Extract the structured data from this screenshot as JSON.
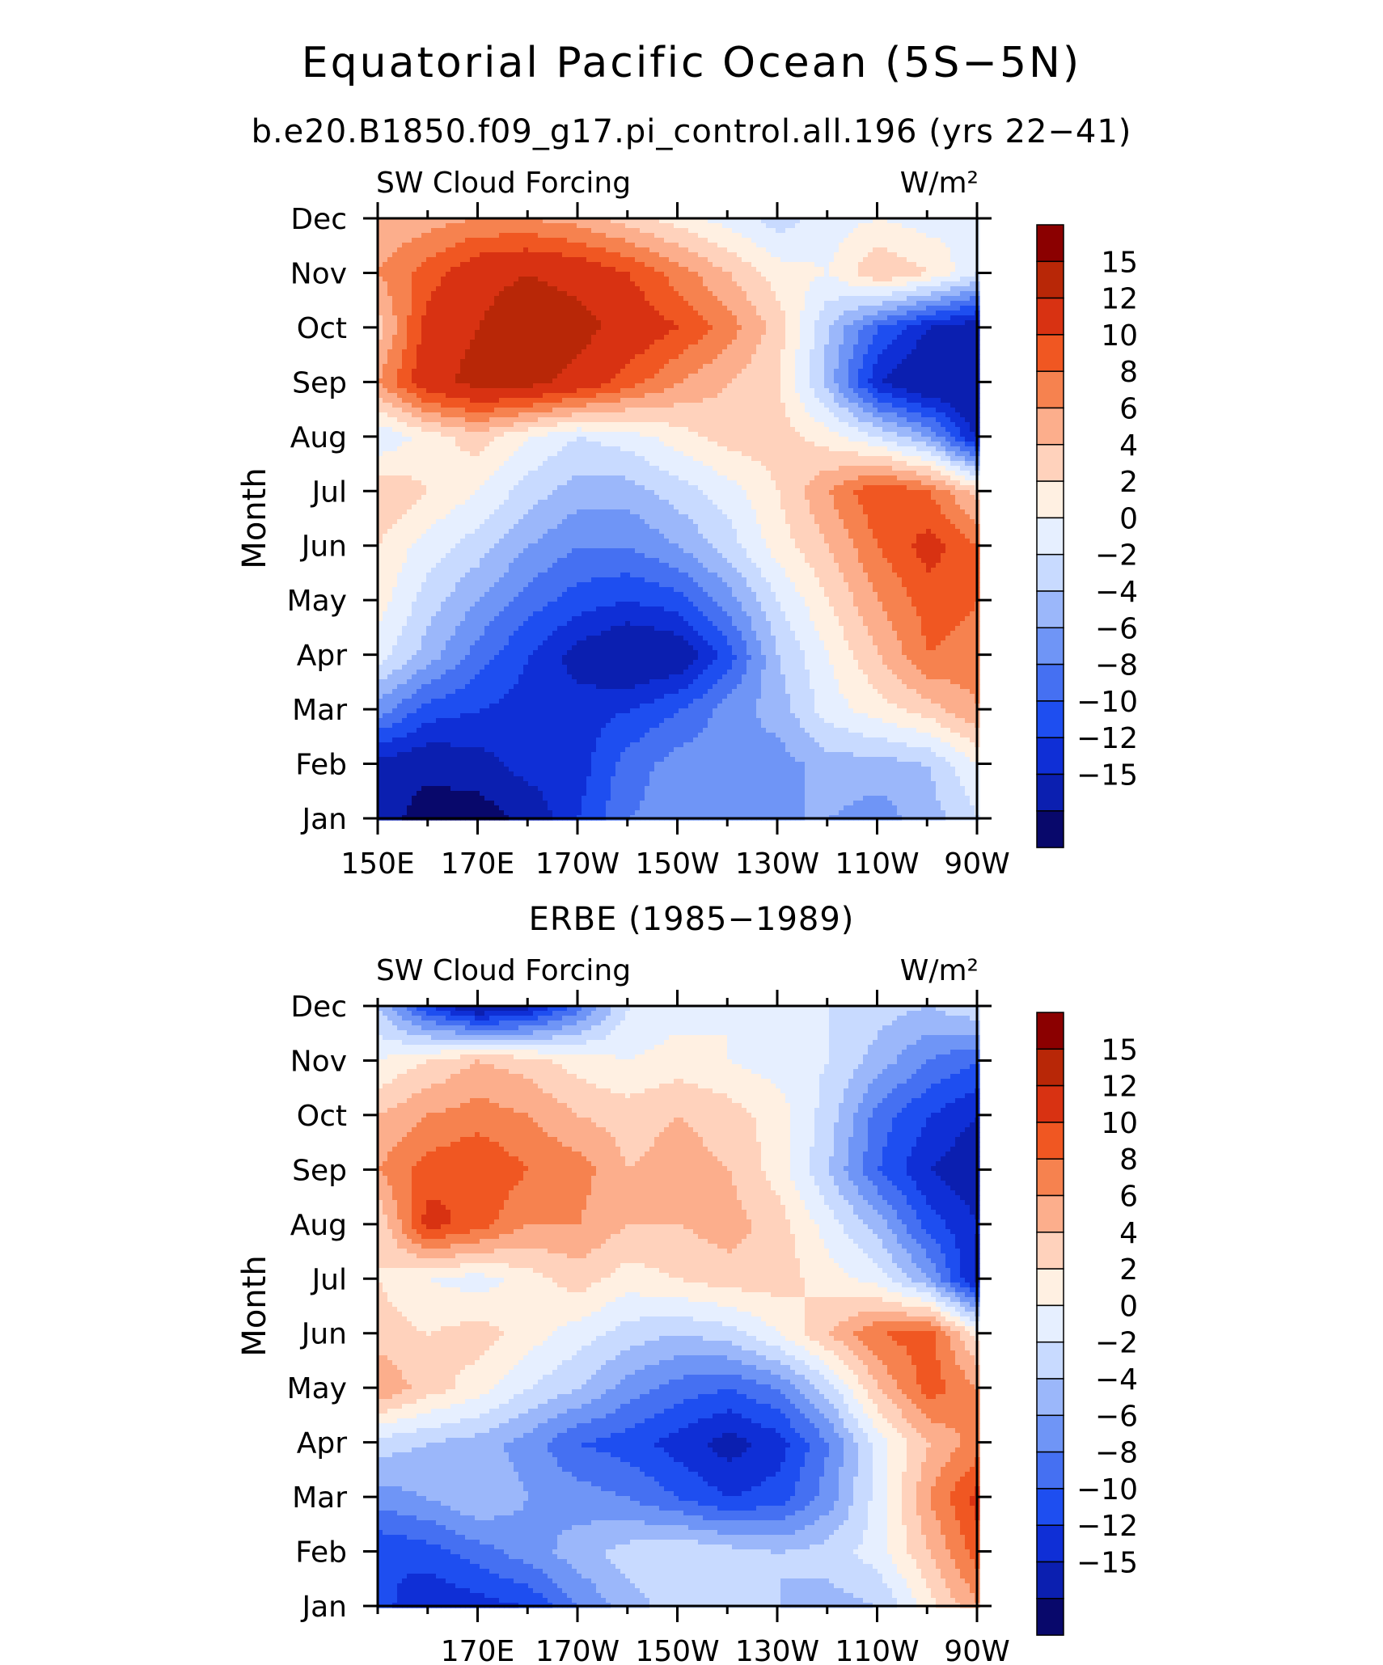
{
  "title": "Equatorial Pacific Ocean (5S−5N)",
  "subtitle": "b.e20.B1850.f09_g17.pi_control.all.196 (yrs 22−41)",
  "panel2_title": "ERBE (1985−1989)",
  "colors": {
    "levels": [
      "#08086b",
      "#0b1fb0",
      "#0f2fd6",
      "#1e4ef0",
      "#4570f2",
      "#6f95f6",
      "#9bb7fa",
      "#c8daff",
      "#e6efff",
      "#fff0e2",
      "#ffd2bc",
      "#fcae8c",
      "#f6824f",
      "#f05722",
      "#d83212",
      "#b82707",
      "#8b0000"
    ],
    "bar_ticks": [
      "15",
      "12",
      "10",
      "8",
      "6",
      "4",
      "2",
      "0",
      "−2",
      "−4",
      "−6",
      "−8",
      "−10",
      "−12",
      "−15"
    ]
  },
  "chart_data": [
    {
      "type": "heatmap",
      "title": "SW Cloud Forcing",
      "units": "W/m²",
      "ylabel": "Month",
      "x_tick_labels": [
        "150E",
        "170E",
        "170W",
        "150W",
        "130W",
        "110W",
        "90W"
      ],
      "y_tick_labels": [
        "Jan",
        "Feb",
        "Mar",
        "Apr",
        "May",
        "Jun",
        "Jul",
        "Aug",
        "Sep",
        "Oct",
        "Nov",
        "Dec"
      ],
      "x_range": [
        "150E",
        "90W"
      ],
      "levels": [
        -15,
        -12,
        -10,
        -8,
        -6,
        -4,
        -2,
        0,
        2,
        4,
        6,
        8,
        10,
        12,
        15
      ],
      "columns": [
        "150E",
        "160E",
        "170E",
        "180",
        "170W",
        "160W",
        "150W",
        "140W",
        "130W",
        "120W",
        "110W",
        "100W",
        "90W"
      ],
      "values": [
        [
          -13,
          -17,
          -17,
          -14,
          -10,
          -6,
          -5,
          -4,
          -4,
          -4,
          -5,
          -3,
          0
        ],
        [
          -13,
          -14,
          -13,
          -11,
          -11,
          -7,
          -5,
          -5,
          -5,
          -3,
          -3,
          -2,
          2
        ],
        [
          -5,
          -9,
          -10,
          -11,
          -11,
          -10,
          -8,
          -5,
          -3,
          1,
          3,
          5,
          8
        ],
        [
          1,
          -3,
          -7,
          -10,
          -13,
          -15,
          -14,
          -9,
          -2,
          2,
          6,
          10,
          9
        ],
        [
          3,
          -1,
          -4,
          -7,
          -9,
          -10,
          -9,
          -5,
          0,
          4,
          8,
          11,
          10
        ],
        [
          4,
          1,
          -1,
          -4,
          -6,
          -6,
          -4,
          -1,
          3,
          6,
          10,
          13,
          10
        ],
        [
          6,
          4,
          2,
          -1,
          -3,
          -3,
          -1,
          1,
          4,
          8,
          12,
          10,
          5
        ],
        [
          0,
          3,
          5,
          2,
          0,
          1,
          3,
          5,
          5,
          3,
          0,
          -4,
          -13
        ],
        [
          8,
          14,
          16,
          16,
          14,
          11,
          8,
          6,
          4,
          -3,
          -12,
          -15,
          -15
        ],
        [
          5,
          13,
          15,
          17,
          16,
          14,
          12,
          9,
          5,
          -2,
          -8,
          -12,
          -14
        ],
        [
          8,
          11,
          14,
          15,
          14,
          12,
          9,
          6,
          3,
          2,
          6,
          4,
          0
        ],
        [
          6,
          7,
          8,
          8,
          7,
          5,
          3,
          1,
          -1,
          1,
          2,
          1,
          2
        ]
      ]
    },
    {
      "type": "heatmap",
      "title": "SW Cloud Forcing",
      "units": "W/m²",
      "ylabel": "Month",
      "x_tick_labels": [
        "170E",
        "170W",
        "150W",
        "130W",
        "110W",
        "90W"
      ],
      "y_tick_labels": [
        "Jan",
        "Feb",
        "Mar",
        "Apr",
        "May",
        "Jun",
        "Jul",
        "Aug",
        "Sep",
        "Oct",
        "Nov",
        "Dec"
      ],
      "x_range": [
        "150E",
        "90W"
      ],
      "levels": [
        -15,
        -12,
        -10,
        -8,
        -6,
        -4,
        -2,
        0,
        2,
        4,
        6,
        8,
        10,
        12,
        15
      ],
      "columns": [
        "150E",
        "160E",
        "170E",
        "180",
        "170W",
        "160W",
        "150W",
        "140W",
        "130W",
        "120W",
        "110W",
        "100W",
        "90W"
      ],
      "values": [
        [
          -9,
          -12,
          -11,
          -10,
          -6,
          -3,
          -1,
          -1,
          -2,
          -3,
          -2,
          3,
          8
        ],
        [
          -10,
          -9,
          -7,
          -5,
          -3,
          -1,
          0,
          -1,
          -2,
          -1,
          1,
          6,
          11
        ],
        [
          -5,
          -4,
          -2,
          -4,
          -5,
          -6,
          -8,
          -10,
          -9,
          -5,
          1,
          8,
          13
        ],
        [
          -1,
          -2,
          -3,
          -5,
          -8,
          -9,
          -11,
          -13,
          -11,
          -6,
          1,
          6,
          9
        ],
        [
          8,
          5,
          3,
          0,
          -2,
          -5,
          -7,
          -8,
          -6,
          -1,
          6,
          11,
          8
        ],
        [
          5,
          4,
          5,
          3,
          1,
          -1,
          -2,
          -1,
          2,
          6,
          10,
          11,
          3
        ],
        [
          4,
          2,
          1,
          3,
          5,
          3,
          4,
          5,
          5,
          3,
          1,
          -4,
          -13
        ],
        [
          4,
          13,
          11,
          8,
          8,
          6,
          6,
          7,
          5,
          1,
          -3,
          -9,
          -12
        ],
        [
          8,
          11,
          12,
          10,
          9,
          6,
          7,
          6,
          3,
          -2,
          -8,
          -12,
          -14
        ],
        [
          6,
          8,
          9,
          8,
          6,
          5,
          6,
          5,
          3,
          -1,
          -7,
          -10,
          -12
        ],
        [
          2,
          4,
          6,
          5,
          3,
          2,
          3,
          2,
          1,
          0,
          -3,
          -6,
          -8
        ],
        [
          -2,
          -10,
          -15,
          -13,
          -7,
          0,
          1,
          2,
          1,
          0,
          -1,
          -2,
          0
        ]
      ]
    }
  ]
}
